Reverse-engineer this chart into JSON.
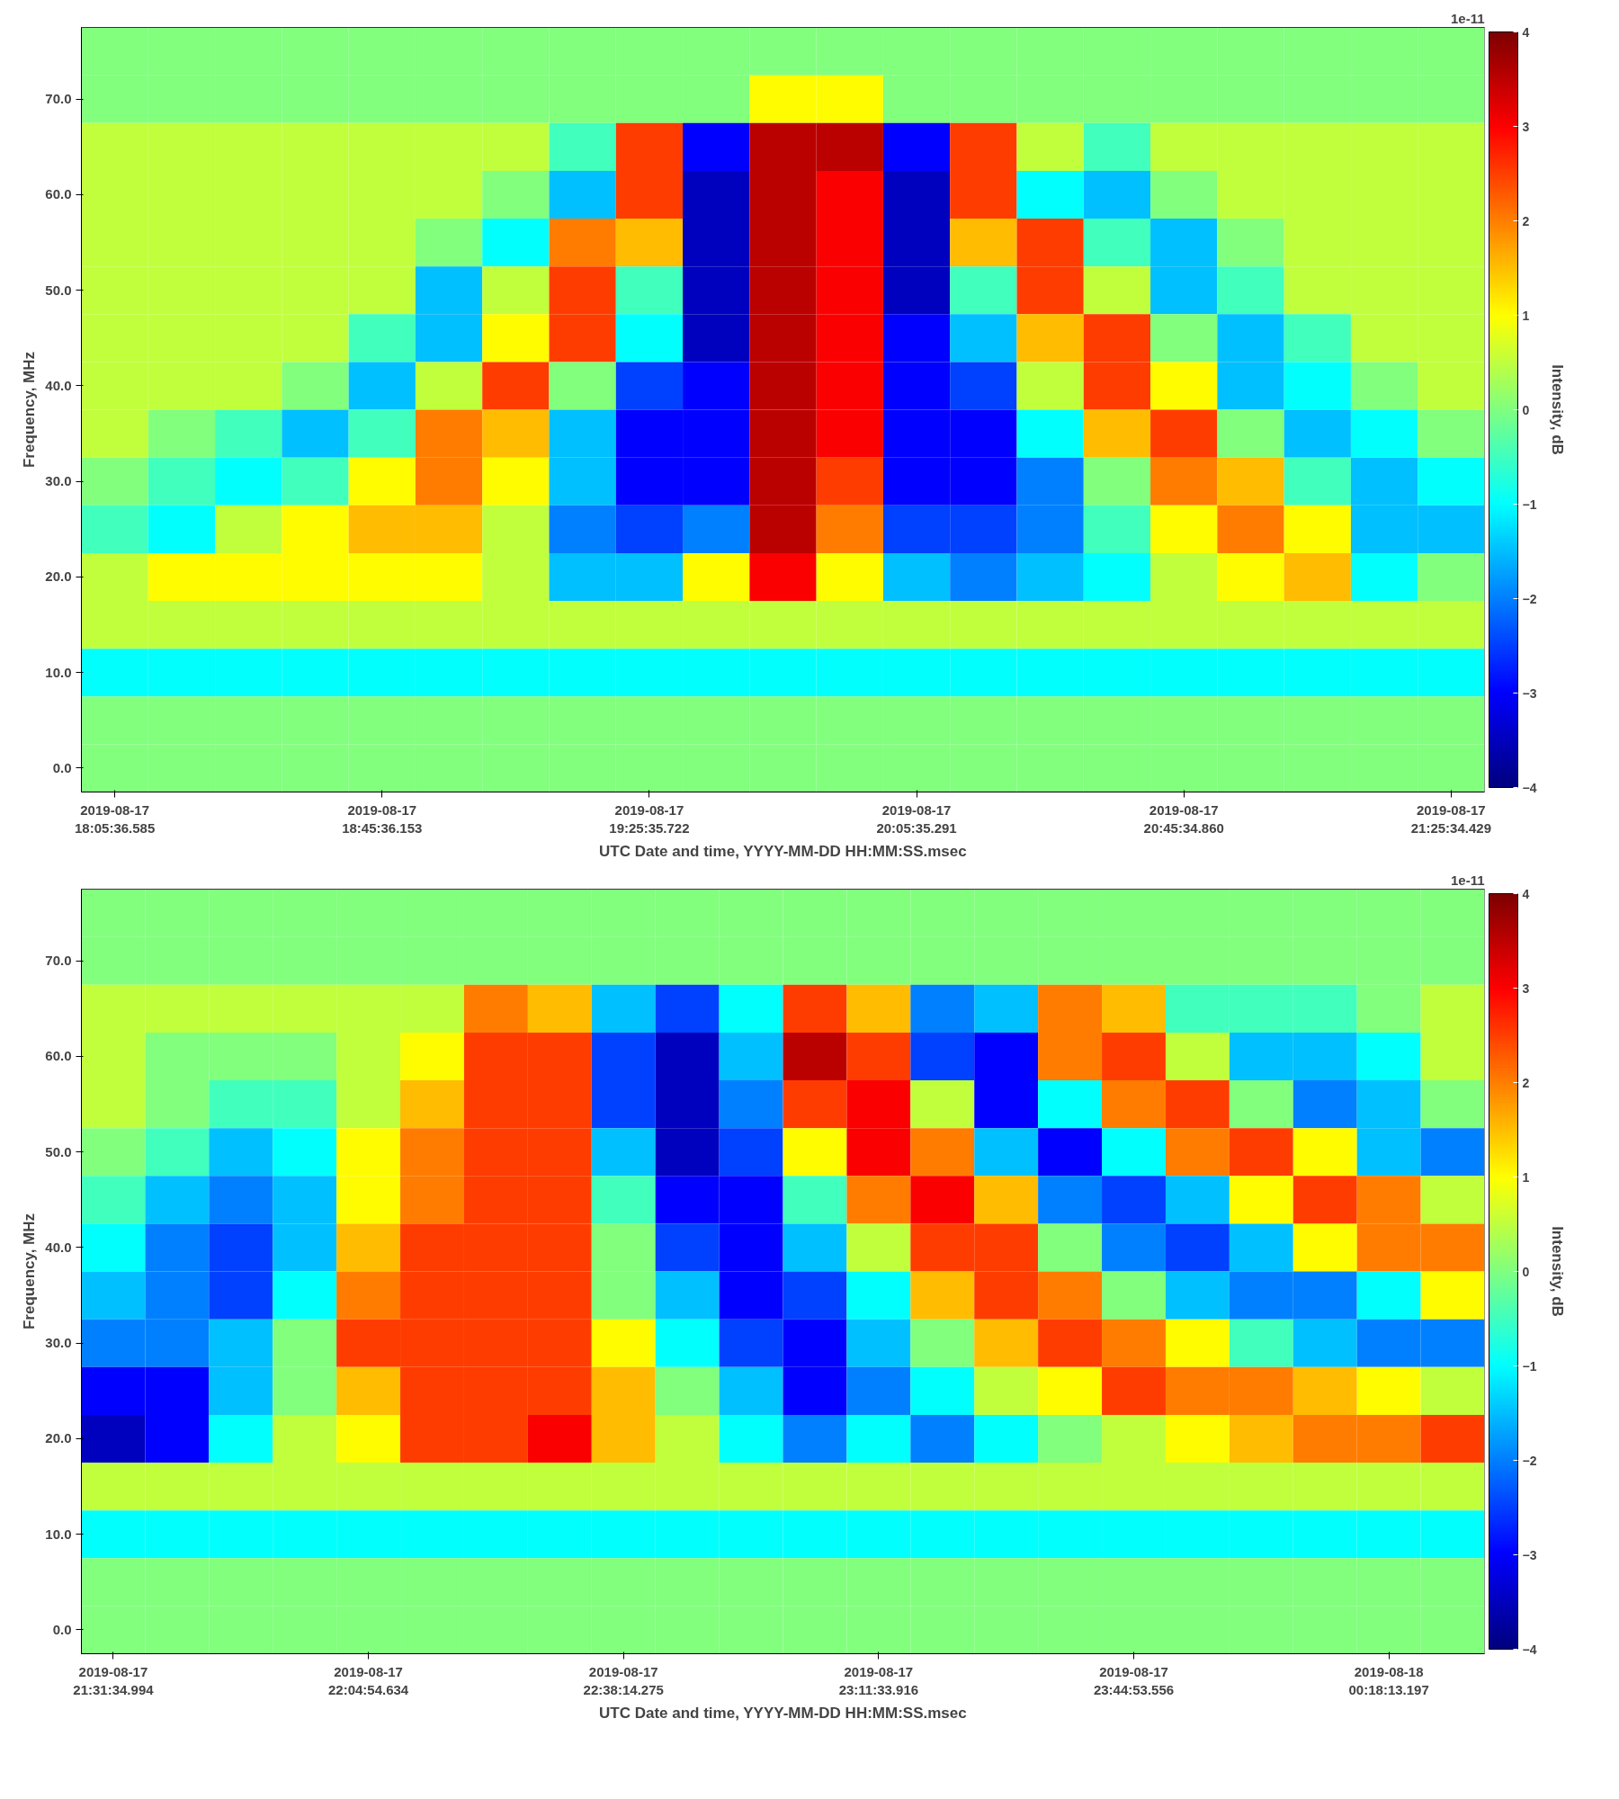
{
  "chart_data": [
    {
      "type": "heatmap",
      "xlabel": "UTC Date and time, YYYY-MM-DD HH:MM:SS.msec",
      "ylabel": "Frequency, MHz",
      "clabel": "Intensity, dB",
      "annotations": [
        "1e-11"
      ],
      "categories": [
        "2019-08-17\n18:05:36.585",
        null,
        null,
        null,
        "2019-08-17\n18:45:36.153",
        null,
        null,
        null,
        "2019-08-17\n19:25:35.722",
        null,
        null,
        null,
        "2019-08-17\n20:05:35.291",
        null,
        null,
        null,
        "2019-08-17\n20:45:34.860",
        null,
        null,
        null,
        "2019-08-17\n21:25:34.429"
      ],
      "y_categories": [
        null,
        "70.0",
        null,
        "60.0",
        null,
        "50.0",
        null,
        "40.0",
        null,
        "30.0",
        null,
        "20.0",
        null,
        "10.0",
        null,
        "0.0"
      ],
      "clim": [
        -4,
        4
      ],
      "cticks": [
        -4,
        -3,
        -2,
        -1,
        0,
        1,
        2,
        3,
        4
      ],
      "cells": [
        [
          0,
          0,
          0,
          0,
          0,
          0,
          0,
          0,
          0,
          0,
          0,
          0,
          0,
          0,
          0,
          0,
          0,
          0,
          0,
          0,
          0
        ],
        [
          0,
          0,
          0,
          0,
          0,
          0,
          0,
          0,
          0,
          0,
          1,
          1,
          0,
          0,
          0,
          0,
          0,
          0,
          0,
          0,
          0
        ],
        [
          0.5,
          0.5,
          0.5,
          0.5,
          0.5,
          0.5,
          0.5,
          -0.5,
          2.5,
          -3,
          3.5,
          3.5,
          -3,
          2.5,
          0.5,
          -0.5,
          0.5,
          0.5,
          0.5,
          0.5,
          0.5
        ],
        [
          0.5,
          0.5,
          0.5,
          0.5,
          0.5,
          0.5,
          0,
          -1.5,
          2.5,
          -3.5,
          3.5,
          3,
          -3.5,
          2.5,
          -1,
          -1.5,
          0,
          0.5,
          0.5,
          0.5,
          0.5
        ],
        [
          0.5,
          0.5,
          0.5,
          0.5,
          0.5,
          0,
          -1,
          2,
          1.5,
          -3.5,
          3.5,
          3,
          -3.5,
          1.5,
          2.5,
          -0.5,
          -1.5,
          0,
          0.5,
          0.5,
          0.5
        ],
        [
          0.5,
          0.5,
          0.5,
          0.5,
          0.5,
          -1.5,
          0.5,
          2.5,
          -0.5,
          -3.5,
          3.5,
          3,
          -3.5,
          -0.5,
          2.5,
          0.5,
          -1.5,
          -0.5,
          0.5,
          0.5,
          0.5
        ],
        [
          0.5,
          0.5,
          0.5,
          0.5,
          -0.5,
          -1.5,
          1,
          2.5,
          -1,
          -3.5,
          3.5,
          3,
          -3,
          -1.5,
          1.5,
          2.5,
          0,
          -1.5,
          -0.5,
          0.5,
          0.5
        ],
        [
          0.5,
          0.5,
          0.5,
          0,
          -1.5,
          0.5,
          2.5,
          0,
          -2.5,
          -3,
          3.5,
          3,
          -3,
          -2.5,
          0.5,
          2.5,
          1,
          -1.5,
          -1,
          0,
          0.5
        ],
        [
          0.5,
          0,
          -0.5,
          -1.5,
          -0.5,
          2,
          1.5,
          -1.5,
          -3,
          -3,
          3.5,
          3,
          -3,
          -3,
          -1,
          1.5,
          2.5,
          0,
          -1.5,
          -1,
          0
        ],
        [
          0,
          -0.5,
          -1,
          -0.5,
          1,
          2,
          1,
          -1.5,
          -3,
          -3,
          3.5,
          2.5,
          -3,
          -3,
          -2,
          0,
          2,
          1.5,
          -0.5,
          -1.5,
          -1
        ],
        [
          -0.5,
          -1,
          0.5,
          1,
          1.5,
          1.5,
          0.5,
          -2,
          -2.5,
          -2,
          3.5,
          2,
          -2.5,
          -2.5,
          -2,
          -0.5,
          1,
          2,
          1,
          -1.5,
          -1.5
        ],
        [
          0.5,
          1,
          1,
          1,
          1,
          1,
          0.5,
          -1.5,
          -1.5,
          1,
          3,
          1,
          -1.5,
          -2,
          -1.5,
          -1,
          0.5,
          1,
          1.5,
          -1,
          0
        ],
        [
          0.5,
          0.5,
          0.5,
          0.5,
          0.5,
          0.5,
          0.5,
          0.5,
          0.5,
          0.5,
          0.5,
          0.5,
          0.5,
          0.5,
          0.5,
          0.5,
          0.5,
          0.5,
          0.5,
          0.5,
          0.5
        ],
        [
          -1,
          -1,
          -1,
          -1,
          -1,
          -1,
          -1,
          -1,
          -1,
          -1,
          -1,
          -1,
          -1,
          -1,
          -1,
          -1,
          -1,
          -1,
          -1,
          -1,
          -1
        ],
        [
          0,
          0,
          0,
          0,
          0,
          0,
          0,
          0,
          0,
          0,
          0,
          0,
          0,
          0,
          0,
          0,
          0,
          0,
          0,
          0,
          0
        ],
        [
          0,
          0,
          0,
          0,
          0,
          0,
          0,
          0,
          0,
          0,
          0,
          0,
          0,
          0,
          0,
          0,
          0,
          0,
          0,
          0,
          0
        ]
      ]
    },
    {
      "type": "heatmap",
      "xlabel": "UTC Date and time, YYYY-MM-DD HH:MM:SS.msec",
      "ylabel": "Frequency, MHz",
      "clabel": "Intensity, dB",
      "annotations": [
        "1e-11"
      ],
      "categories": [
        "2019-08-17\n21:31:34.994",
        null,
        null,
        null,
        "2019-08-17\n22:04:54.634",
        null,
        null,
        null,
        "2019-08-17\n22:38:14.275",
        null,
        null,
        null,
        "2019-08-17\n23:11:33.916",
        null,
        null,
        null,
        "2019-08-17\n23:44:53.556",
        null,
        null,
        null,
        "2019-08-18\n00:18:13.197",
        null
      ],
      "y_categories": [
        null,
        "70.0",
        null,
        "60.0",
        null,
        "50.0",
        null,
        "40.0",
        null,
        "30.0",
        null,
        "20.0",
        null,
        "10.0",
        null,
        "0.0"
      ],
      "clim": [
        -4,
        4
      ],
      "cticks": [
        -4,
        -3,
        -2,
        -1,
        0,
        1,
        2,
        3,
        4
      ],
      "cells": [
        [
          0,
          0,
          0,
          0,
          0,
          0,
          0,
          0,
          0,
          0,
          0,
          0,
          0,
          0,
          0,
          0,
          0,
          0,
          0,
          0,
          0,
          0
        ],
        [
          0,
          0,
          0,
          0,
          0,
          0,
          0,
          0,
          0,
          0,
          0,
          0,
          0,
          0,
          0,
          0,
          0,
          0,
          0,
          0,
          0,
          0
        ],
        [
          0.5,
          0.5,
          0.5,
          0.5,
          0.5,
          0.5,
          2,
          1.5,
          -1.5,
          -2.5,
          -1,
          2.5,
          1.5,
          -2,
          -1.5,
          2,
          1.5,
          -0.5,
          -0.5,
          -0.5,
          0,
          0.5
        ],
        [
          0.5,
          0,
          0,
          0,
          0.5,
          1,
          2.5,
          2.5,
          -2.5,
          -3.5,
          -1.5,
          3.5,
          2.5,
          -2.5,
          -3,
          2,
          2.5,
          0.5,
          -1.5,
          -1.5,
          -1,
          0.5
        ],
        [
          0.5,
          0,
          -0.5,
          -0.5,
          0.5,
          1.5,
          2.5,
          2.5,
          -2.5,
          -3.5,
          -2,
          2.5,
          3,
          0.5,
          -3,
          -1,
          2,
          2.5,
          0,
          -2,
          -1.5,
          0
        ],
        [
          0,
          -0.5,
          -1.5,
          -1,
          1,
          2,
          2.5,
          2.5,
          -1.5,
          -3.5,
          -2.5,
          1,
          3,
          2,
          -1.5,
          -3,
          -1,
          2,
          2.5,
          1,
          -1.5,
          -2
        ],
        [
          -0.5,
          -1.5,
          -2,
          -1.5,
          1,
          2,
          2.5,
          2.5,
          -0.5,
          -3,
          -3,
          -0.5,
          2,
          3,
          1.5,
          -2,
          -2.5,
          -1.5,
          1,
          2.5,
          2,
          0.5
        ],
        [
          -1,
          -2,
          -2.5,
          -1.5,
          1.5,
          2.5,
          2.5,
          2.5,
          0,
          -2.5,
          -3,
          -1.5,
          0.5,
          2.5,
          2.5,
          0,
          -2,
          -2.5,
          -1.5,
          1,
          2,
          2
        ],
        [
          -1.5,
          -2,
          -2.5,
          -1,
          2,
          2.5,
          2.5,
          2.5,
          0,
          -1.5,
          -3,
          -2.5,
          -1,
          1.5,
          2.5,
          2,
          0,
          -1.5,
          -2,
          -2,
          -1,
          1
        ],
        [
          -2,
          -2,
          -1.5,
          0,
          2.5,
          2.5,
          2.5,
          2.5,
          1,
          -1,
          -2.5,
          -3,
          -1.5,
          0,
          1.5,
          2.5,
          2,
          1,
          -0.5,
          -1.5,
          -2,
          -2
        ],
        [
          -3,
          -3,
          -1.5,
          0,
          1.5,
          2.5,
          2.5,
          2.5,
          1.5,
          0,
          -1.5,
          -3,
          -2,
          -1,
          0.5,
          1,
          2.5,
          2,
          2,
          1.5,
          1,
          0.5
        ],
        [
          -3.5,
          -3,
          -1,
          0.5,
          1,
          2.5,
          2.5,
          3,
          1.5,
          0.5,
          -1,
          -2,
          -1,
          -2,
          -1,
          0,
          0.5,
          1,
          1.5,
          2,
          2,
          2.5
        ],
        [
          0.5,
          0.5,
          0.5,
          0.5,
          0.5,
          0.5,
          0.5,
          0.5,
          0.5,
          0.5,
          0.5,
          0.5,
          0.5,
          0.5,
          0.5,
          0.5,
          0.5,
          0.5,
          0.5,
          0.5,
          0.5,
          0.5
        ],
        [
          -1,
          -1,
          -1,
          -1,
          -1,
          -1,
          -1,
          -1,
          -1,
          -1,
          -1,
          -1,
          -1,
          -1,
          -1,
          -1,
          -1,
          -1,
          -1,
          -1,
          -1,
          -1
        ],
        [
          0,
          0,
          0,
          0,
          0,
          0,
          0,
          0,
          0,
          0,
          0,
          0,
          0,
          0,
          0,
          0,
          0,
          0,
          0,
          0,
          0,
          0
        ],
        [
          0,
          0,
          0,
          0,
          0,
          0,
          0,
          0,
          0,
          0,
          0,
          0,
          0,
          0,
          0,
          0,
          0,
          0,
          0,
          0,
          0,
          0
        ]
      ]
    }
  ]
}
